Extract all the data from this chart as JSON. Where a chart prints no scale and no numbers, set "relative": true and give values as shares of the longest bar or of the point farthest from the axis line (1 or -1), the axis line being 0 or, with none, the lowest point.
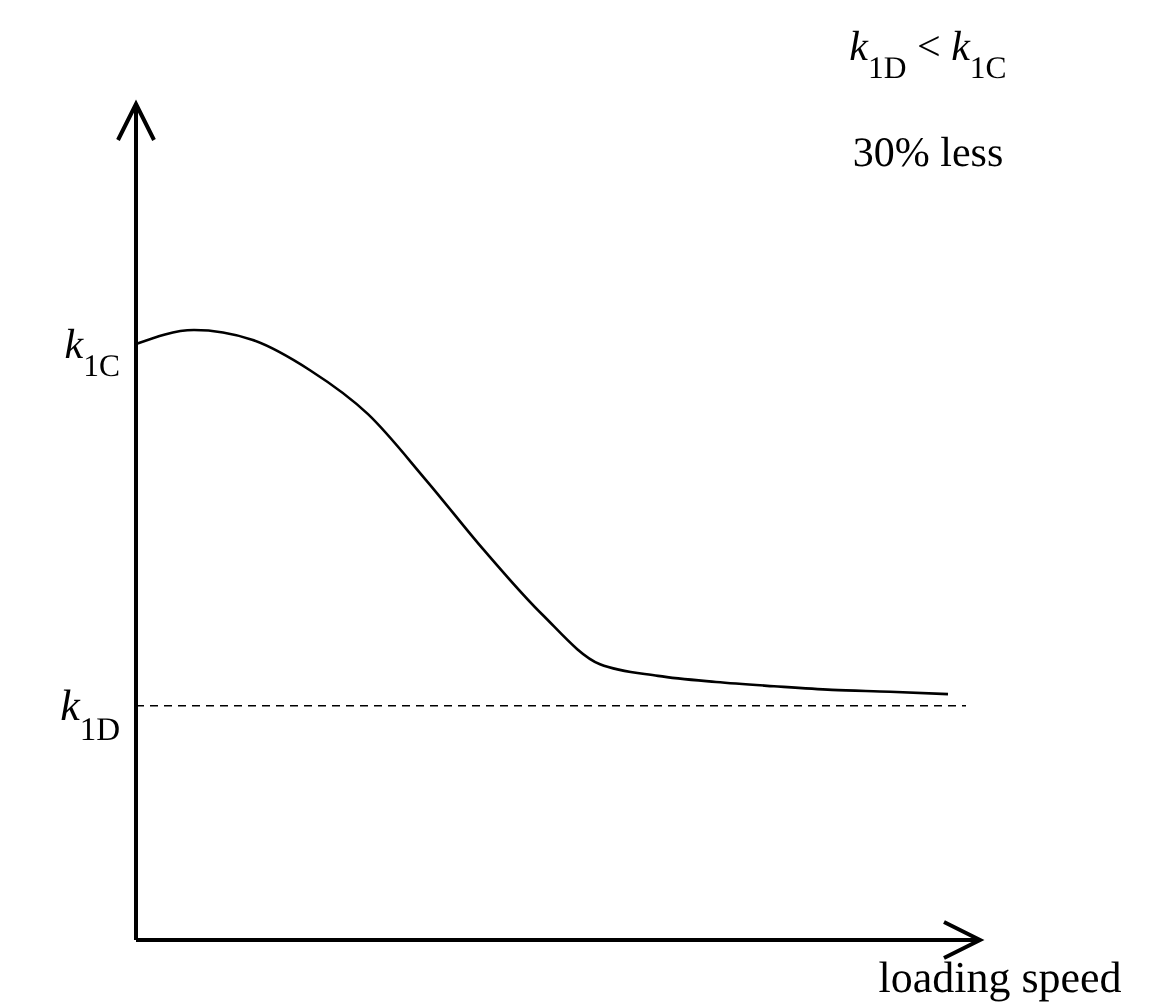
{
  "chart_data": {
    "type": "line",
    "relative": true,
    "xlabel": "loading speed",
    "categories": [
      null,
      null,
      null,
      null,
      null,
      null,
      null,
      null,
      null,
      null,
      null,
      null,
      null,
      null,
      null
    ],
    "series": [
      {
        "color": "#000000",
        "values": [
          0.977,
          1,
          0.984,
          0.934,
          0.862,
          0.754,
          0.639,
          0.534,
          0.452,
          0.433,
          0.423,
          0.416,
          0.41,
          0.407,
          0.403
        ]
      }
    ],
    "ref_lines": [
      {
        "axis": "y",
        "value": 0.384,
        "label": "k$_{1D}$",
        "line_style": "dashed",
        "color": "#000000"
      }
    ],
    "annotations": [
      "k$_{1C}$",
      "k$_{1D}$ < k$_{1C}$",
      "30% less"
    ],
    "line_style": "solid",
    "marker": "none"
  }
}
